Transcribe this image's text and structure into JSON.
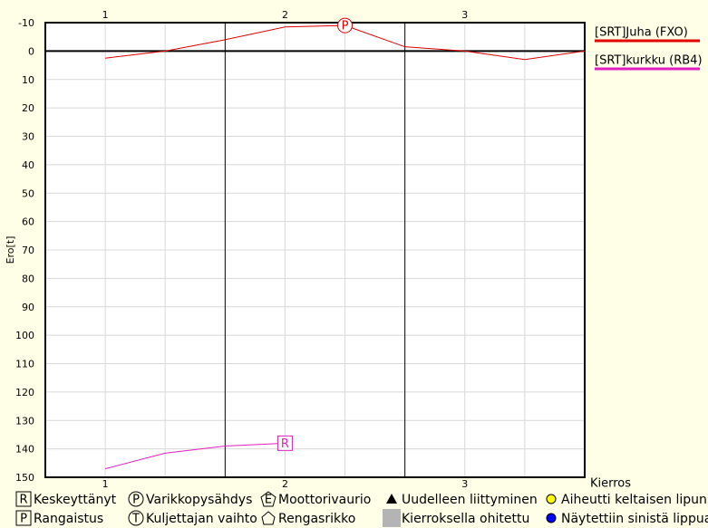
{
  "chart_data": {
    "type": "line",
    "y_label": "Ero[t]",
    "x_label": "Kierros",
    "xlim": [
      0.6667,
      3.6667
    ],
    "xticks": [
      1,
      2,
      3
    ],
    "x_minor_grid": [
      1,
      1.3333,
      2,
      2.3333,
      3,
      3.3333
    ],
    "lap_lines": [
      1.6667,
      2.6667
    ],
    "ylim": [
      -10,
      150
    ],
    "yticks": [
      -10,
      0,
      10,
      20,
      30,
      40,
      50,
      60,
      70,
      80,
      90,
      100,
      110,
      120,
      130,
      140,
      150
    ],
    "inverted_y": true,
    "grid": true,
    "zero_line": 0,
    "series": [
      {
        "name": "[SRT]Juha (FXO)",
        "color": "#e00000",
        "x": [
          1,
          1.3333,
          1.6667,
          2,
          2.3333,
          2.6667,
          3,
          3.3333,
          3.6667
        ],
        "values": [
          2.5,
          0,
          -4,
          -8.5,
          -9,
          -1.5,
          0,
          3,
          0
        ],
        "events": [
          {
            "x": 2.3333,
            "y": -9,
            "symbol": "P"
          }
        ]
      },
      {
        "name": "[SRT]kurkku (RB4)",
        "color": "#e020c0",
        "x": [
          1,
          1.3333,
          1.6667,
          2
        ],
        "values": [
          147,
          141.5,
          139,
          138
        ],
        "events": [
          {
            "x": 2,
            "y": 138,
            "symbol": "R"
          }
        ]
      }
    ],
    "legend": [
      {
        "symbol": "R",
        "label": "Keskeyttänyt"
      },
      {
        "symbol": "P",
        "label": "Rangaistus"
      },
      {
        "symbol": "P",
        "label": "Varikkopysähdys"
      },
      {
        "symbol": "T",
        "label": "Kuljettajan vaihto"
      },
      {
        "symbol": "E",
        "label": "Moottorivaurio"
      },
      {
        "label": "Rengasrikko"
      },
      {
        "label": "Uudelleen liittyminen"
      },
      {
        "label": "Kierroksella ohitettu"
      },
      {
        "label": "Aiheutti keltaisen lipun"
      },
      {
        "label": "Näytettiin sinistä lippua"
      }
    ]
  }
}
